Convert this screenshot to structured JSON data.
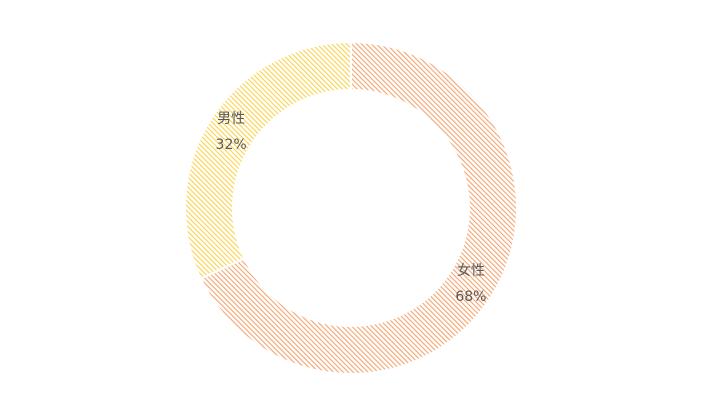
{
  "chart_data": {
    "type": "donut",
    "categories": [
      "女性",
      "男性"
    ],
    "values": [
      68,
      32
    ],
    "value_labels": [
      "68%",
      "32%"
    ],
    "colors": [
      "#f4a46e",
      "#fcd24a"
    ]
  }
}
